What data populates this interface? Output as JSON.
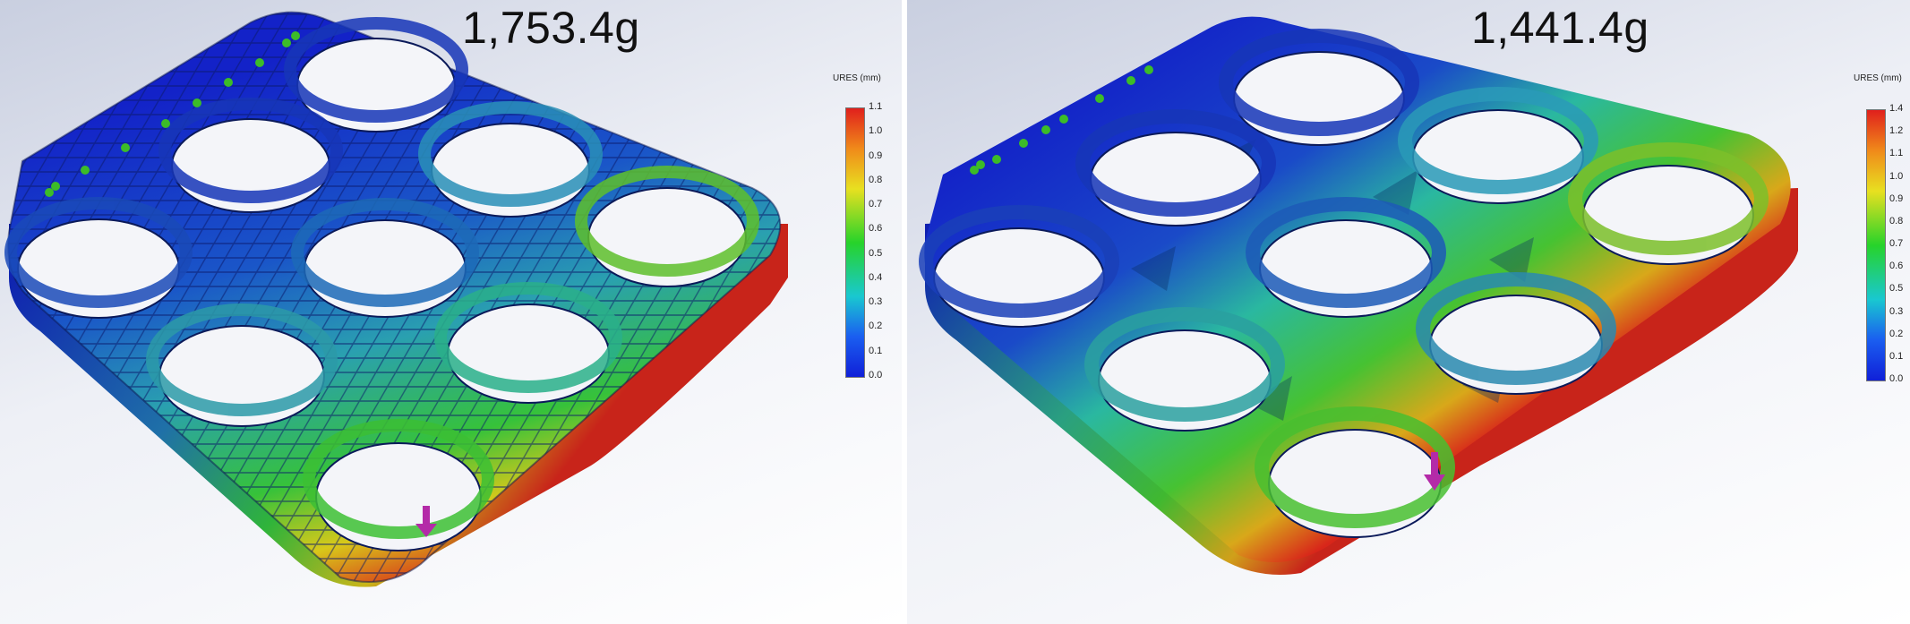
{
  "panels": [
    {
      "weight": "1,753.4g",
      "legend": {
        "title": "URES (mm)",
        "ticks": [
          "1.1",
          "1.0",
          "0.9",
          "0.8",
          "0.7",
          "0.6",
          "0.5",
          "0.4",
          "0.3",
          "0.2",
          "0.1",
          "0.0"
        ]
      }
    },
    {
      "weight": "1,441.4g",
      "legend": {
        "title": "URES (mm)",
        "ticks": [
          "1.4",
          "1.2",
          "1.1",
          "1.0",
          "0.9",
          "0.8",
          "0.7",
          "0.6",
          "0.5",
          "0.3",
          "0.2",
          "0.1",
          "0.0"
        ]
      }
    }
  ],
  "colors": {
    "scale_top": "#e0201c",
    "scale_mid": "#27d32a",
    "scale_bottom": "#1020d8",
    "load_arrow": "#b42aa8",
    "fixture": "#3cbc28"
  }
}
